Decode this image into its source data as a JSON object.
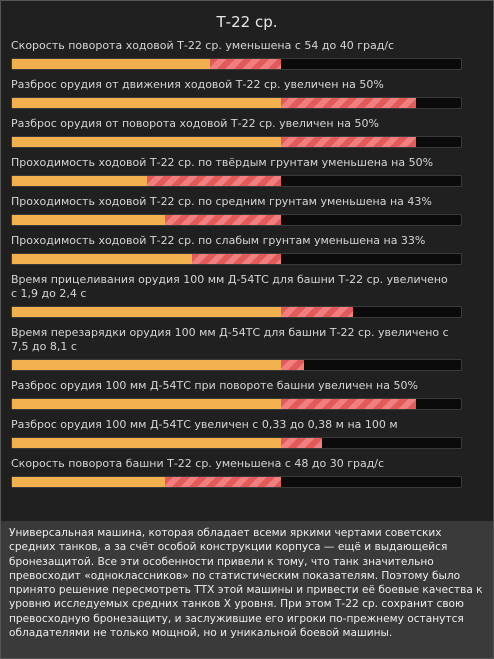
{
  "title": "Т-22 ср.",
  "rows": [
    {
      "text": "Скорость поворота ходовой Т-22 ср. уменьшена с 54 до 40 град/с",
      "bar": [
        44,
        16
      ]
    },
    {
      "text": "Разброс орудия от движения ходовой Т-22 ср. увеличен на 50%",
      "bar": [
        60,
        30
      ]
    },
    {
      "text": "Разброс орудия от поворота ходовой Т-22 ср. увеличен на 50%",
      "bar": [
        60,
        30
      ]
    },
    {
      "text": "Проходимость ходовой Т-22 ср. по твёрдым грунтам уменьшена на 50%",
      "bar": [
        30,
        30
      ]
    },
    {
      "text": "Проходимость ходовой Т-22 ср. по средним грунтам уменьшена на 43%",
      "bar": [
        34,
        26
      ]
    },
    {
      "text": "Проходимость ходовой Т-22 ср. по слабым грунтам уменьшена на 33%",
      "bar": [
        40,
        20
      ]
    },
    {
      "text": "Время прицеливания орудия 100 мм Д-54ТС для башни Т-22 ср. увеличено с 1,9 до 2,4 с",
      "bar": [
        60,
        16
      ]
    },
    {
      "text": "Время перезарядки орудия 100 мм Д-54ТС для башни Т-22 ср. увеличено с 7,5 до 8,1 с",
      "bar": [
        60,
        5
      ]
    },
    {
      "text": "Разброс орудия 100 мм Д-54ТС при повороте башни увеличен на 50%",
      "bar": [
        60,
        30
      ]
    },
    {
      "text": "Разброс орудия 100 мм Д-54ТС увеличен с 0,33 до 0,38 м на 100 м",
      "bar": [
        60,
        9
      ]
    },
    {
      "text": "Скорость поворота башни Т-22 ср. уменьшена с 48 до 30 град/с",
      "bar": [
        34,
        26
      ]
    }
  ],
  "description": "Универсальная машина, которая обладает всеми яркими чертами советских средних танков, а за счёт особой конструкции корпуса — ещё и выдающейся бронезащитой. Все эти особенности привели к тому, что танк значительно превосходит «одноклассников» по статистическим показателям. Поэтому было принято решение пересмотреть ТТХ этой машины и привести её боевые качества к уровню исследуемых средних танков X уровня. При этом Т-22 ср. сохранит свою превосходную бронезащиту, и заслужившие его игроки по-прежнему останутся обладателями не только мощной, но и уникальной боевой машины."
}
